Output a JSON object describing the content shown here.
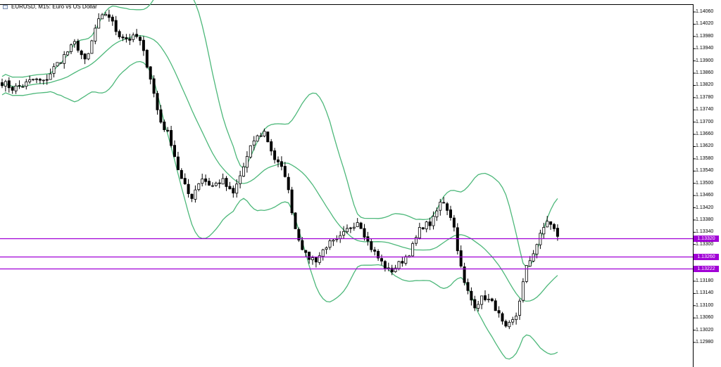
{
  "header": {
    "symbol": "EURUSD",
    "timeframe": "M15",
    "description": "Euro vs US Dollar",
    "title_text": "EURUSD, M15:  Euro vs US Dollar"
  },
  "colors": {
    "background": "#ffffff",
    "bull_candle": "#000000",
    "bear_candle": "#000000",
    "bollinger": "#4db87a",
    "levels": "#a100d6"
  },
  "icons": [
    "flag-icon"
  ],
  "chart_data": {
    "type": "candlestick",
    "title": "EURUSD, M15:  Euro vs US Dollar",
    "y_ticks": [
      "1.14060",
      "1.14020",
      "1.13980",
      "1.13940",
      "1.13900",
      "1.13860",
      "1.13820",
      "1.13780",
      "1.13740",
      "1.13700",
      "1.13660",
      "1.13620",
      "1.13580",
      "1.13540",
      "1.13500",
      "1.13460",
      "1.13420",
      "1.13380",
      "1.13340",
      "1.13300",
      "1.13260",
      "1.13220",
      "1.13180",
      "1.13140",
      "1.13100",
      "1.13060",
      "1.13020",
      "1.12980"
    ],
    "ylim": [
      1.1297,
      1.1408
    ],
    "horizontal_levels": [
      {
        "value": 1.1332,
        "label": "1.13320"
      },
      {
        "value": 1.1326,
        "label": "1.13260"
      },
      {
        "value": 1.13222,
        "label": "1.13222"
      }
    ],
    "indicator": "Bollinger Bands",
    "close_anchors": [
      1.1383,
      1.1381,
      1.1382,
      1.1384,
      1.1383,
      1.1388,
      1.1392,
      1.1396,
      1.1389,
      1.1402,
      1.1406,
      1.1399,
      1.1397,
      1.1398,
      1.1387,
      1.1371,
      1.1365,
      1.1352,
      1.1345,
      1.1352,
      1.1349,
      1.1351,
      1.1346,
      1.1355,
      1.1364,
      1.1367,
      1.1358,
      1.1353,
      1.1335,
      1.1326,
      1.1325,
      1.133,
      1.1331,
      1.1335,
      1.1338,
      1.133,
      1.1325,
      1.1321,
      1.1324,
      1.1328,
      1.1336,
      1.1337,
      1.1345,
      1.1338,
      1.1318,
      1.131,
      1.1313,
      1.131,
      1.1302,
      1.1306,
      1.1322,
      1.133,
      1.1338,
      1.1333
    ],
    "candle_count": 162
  }
}
